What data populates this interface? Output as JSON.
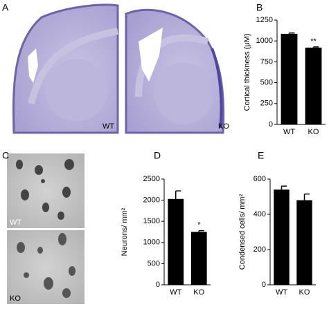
{
  "panels": {
    "a": "A",
    "b": "B",
    "c": "C",
    "d": "D",
    "e": "E"
  },
  "images": {
    "brain_left": "WT",
    "brain_right": "KO",
    "cells_top": "WT",
    "cells_bottom": "KO"
  },
  "chart_data": [
    {
      "type": "bar",
      "y_label": "Cortical thickness (μM)",
      "categories": [
        "WT",
        "KO"
      ],
      "values": [
        1085,
        920
      ],
      "errors": [
        10,
        8
      ],
      "color": "#000000",
      "annotation": "**",
      "ylim": [
        0,
        1250
      ],
      "yticks": [
        0,
        250,
        500,
        750,
        1000,
        1250
      ]
    },
    {
      "type": "bar",
      "y_label": "Neurons/ mm²",
      "categories": [
        "WT",
        "KO"
      ],
      "values": [
        2030,
        1250
      ],
      "errors": [
        190,
        30
      ],
      "color": "#000000",
      "annotation": "*",
      "ylim": [
        0,
        2500
      ],
      "yticks": [
        0,
        500,
        1000,
        1500,
        2000,
        2500
      ]
    },
    {
      "type": "bar",
      "y_label": "Condensed cells/ mm²",
      "categories": [
        "WT",
        "KO"
      ],
      "values": [
        540,
        480
      ],
      "errors": [
        20,
        35
      ],
      "color": "#000000",
      "ylim": [
        0,
        600
      ],
      "yticks": [
        0,
        200,
        400,
        600
      ]
    }
  ]
}
